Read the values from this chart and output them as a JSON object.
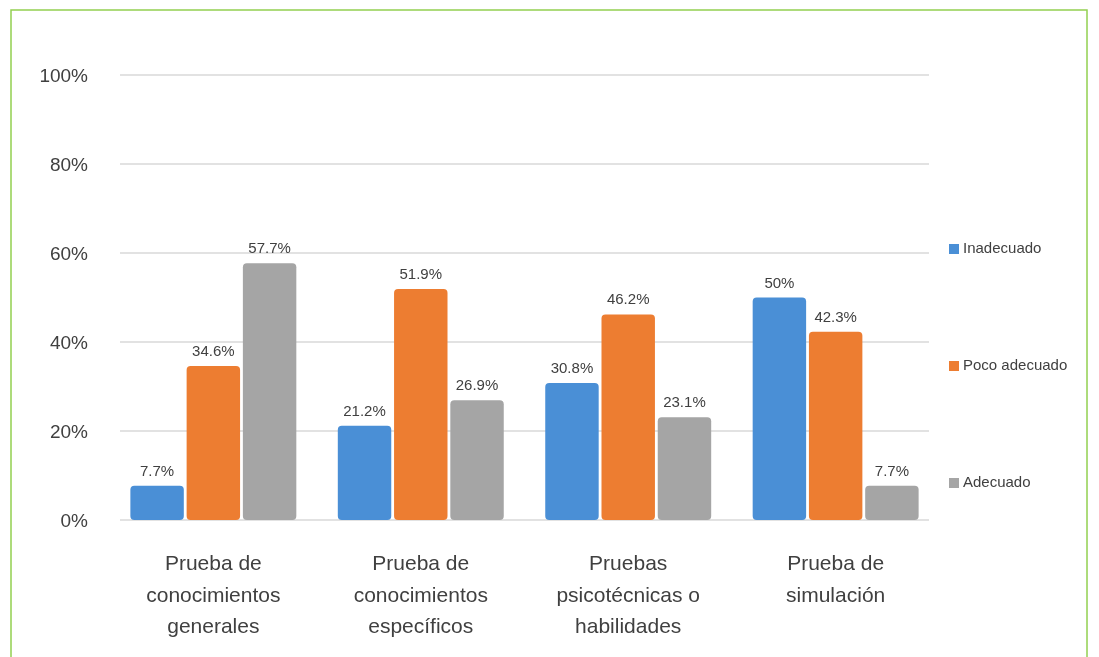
{
  "chart_data": {
    "type": "bar",
    "categories": [
      "Prueba de conocimientos generales",
      "Prueba de conocimientos específicos",
      "Pruebas psicotécnicas o habilidades",
      "Prueba de simulación"
    ],
    "series": [
      {
        "name": "Inadecuado",
        "color": "#4a8fd6",
        "values": [
          7.7,
          21.2,
          30.8,
          50
        ],
        "value_labels": [
          "7.7%",
          "21.2%",
          "30.8%",
          "50%"
        ]
      },
      {
        "name": "Poco adecuado",
        "color": "#ed7d31",
        "values": [
          34.6,
          51.9,
          46.2,
          42.3
        ],
        "value_labels": [
          "34.6%",
          "51.9%",
          "46.2%",
          "42.3%"
        ]
      },
      {
        "name": "Adecuado",
        "color": "#a5a5a5",
        "values": [
          57.7,
          26.9,
          23.1,
          7.7
        ],
        "value_labels": [
          "57.7%",
          "26.9%",
          "23.1%",
          "7.7%"
        ]
      }
    ],
    "ylim": [
      0,
      100
    ],
    "yticks": [
      {
        "value": 0,
        "label": "0%"
      },
      {
        "value": 20,
        "label": "20%"
      },
      {
        "value": 40,
        "label": "40%"
      },
      {
        "value": 60,
        "label": "60%"
      },
      {
        "value": 80,
        "label": "80%"
      },
      {
        "value": 100,
        "label": "100%"
      }
    ],
    "grid": "y",
    "legend": "right"
  }
}
